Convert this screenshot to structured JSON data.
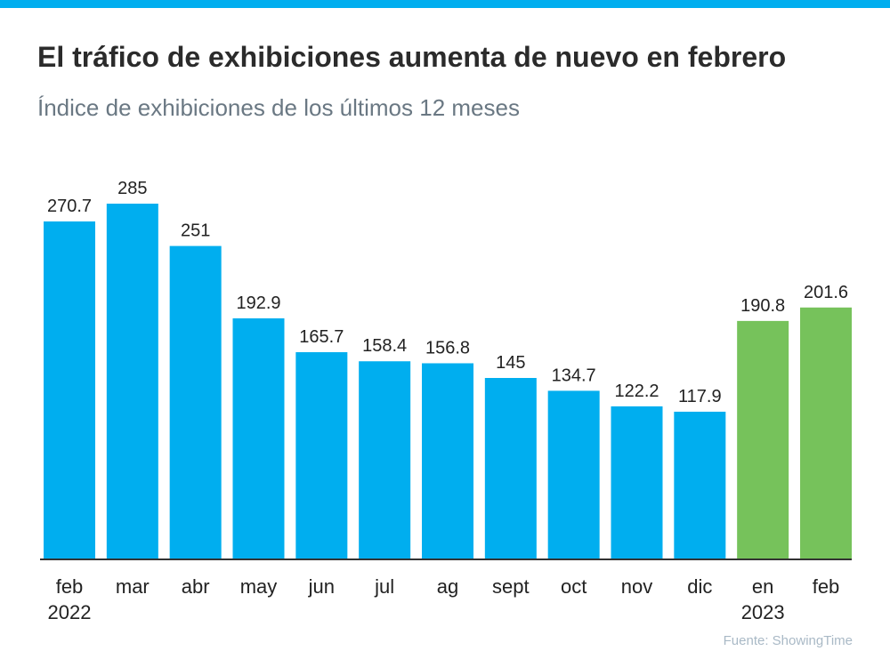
{
  "header": {
    "title": "El tráfico de exhibiciones aumenta de nuevo en febrero",
    "subtitle": "Índice de exhibiciones de los últimos 12 meses"
  },
  "footer": {
    "source": "Fuente: ShowingTime"
  },
  "colors": {
    "accent_bar": "#00aeef",
    "bar_2022": "#00aeef",
    "bar_2023": "#76c25b",
    "axis": "#333333",
    "label": "#222222"
  },
  "chart_data": {
    "type": "bar",
    "title": "El tráfico de exhibiciones aumenta de nuevo en febrero",
    "subtitle": "Índice de exhibiciones de los últimos 12 meses",
    "xlabel": "",
    "ylabel": "",
    "ylim": [
      0,
      300
    ],
    "grid": false,
    "categories": [
      {
        "label": "feb",
        "year": "2022"
      },
      {
        "label": "mar",
        "year": ""
      },
      {
        "label": "abr",
        "year": ""
      },
      {
        "label": "may",
        "year": ""
      },
      {
        "label": "jun",
        "year": ""
      },
      {
        "label": "jul",
        "year": ""
      },
      {
        "label": "ag",
        "year": ""
      },
      {
        "label": "sept",
        "year": ""
      },
      {
        "label": "oct",
        "year": ""
      },
      {
        "label": "nov",
        "year": ""
      },
      {
        "label": "dic",
        "year": ""
      },
      {
        "label": "en",
        "year": "2023"
      },
      {
        "label": "feb",
        "year": ""
      }
    ],
    "values": [
      270.7,
      285,
      251,
      192.9,
      165.7,
      158.4,
      156.8,
      145,
      134.7,
      122.2,
      117.9,
      190.8,
      201.6
    ],
    "value_labels": [
      "270.7",
      "285",
      "251",
      "192.9",
      "165.7",
      "158.4",
      "156.8",
      "145",
      "134.7",
      "122.2",
      "117.9",
      "190.8",
      "201.6"
    ],
    "bar_groups": [
      "2022",
      "2022",
      "2022",
      "2022",
      "2022",
      "2022",
      "2022",
      "2022",
      "2022",
      "2022",
      "2022",
      "2023",
      "2023"
    ]
  }
}
